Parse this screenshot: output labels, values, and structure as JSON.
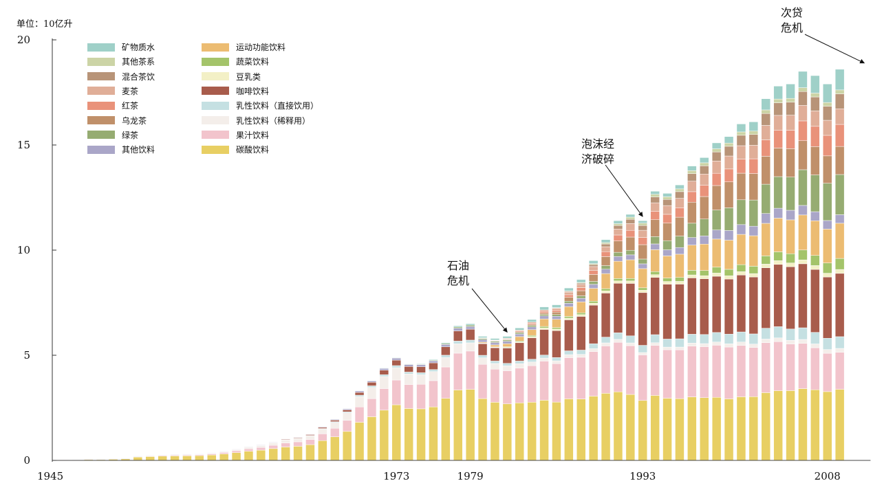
{
  "chart_data": {
    "type": "stacked_bar",
    "title": "",
    "ylabel": "单位：10亿升",
    "xlabel": "",
    "ylim": [
      0,
      20
    ],
    "yticks": [
      0,
      5,
      10,
      15,
      20
    ],
    "xtick_labels": [
      "1945",
      "1973",
      "1979",
      "1993",
      "2008"
    ],
    "x": [
      1946,
      1947,
      1948,
      1949,
      1950,
      1951,
      1952,
      1953,
      1954,
      1955,
      1956,
      1957,
      1958,
      1959,
      1960,
      1961,
      1962,
      1963,
      1964,
      1965,
      1966,
      1967,
      1968,
      1969,
      1970,
      1971,
      1972,
      1973,
      1974,
      1975,
      1976,
      1977,
      1978,
      1979,
      1980,
      1981,
      1982,
      1983,
      1984,
      1985,
      1986,
      1987,
      1988,
      1989,
      1990,
      1991,
      1992,
      1993,
      1994,
      1995,
      1996,
      1997,
      1998,
      1999,
      2000,
      2001,
      2002,
      2003,
      2004,
      2005,
      2006,
      2007,
      2008,
      2009,
      2010,
      2011
    ],
    "series": [
      {
        "name": "碳酸饮料",
        "color": "#e8cf63"
      },
      {
        "name": "果汁饮料",
        "color": "#f2c4cc"
      },
      {
        "name": "乳性饮料（稀释用）",
        "color": "#f4eeea"
      },
      {
        "name": "乳性饮料（直接饮用）",
        "color": "#c5e0e2"
      },
      {
        "name": "咖啡饮料",
        "color": "#a85c4c"
      },
      {
        "name": "豆乳类",
        "color": "#f3f0c6"
      },
      {
        "name": "蔬菜饮料",
        "color": "#a4c46a"
      },
      {
        "name": "运动功能饮料",
        "color": "#ecbc72"
      },
      {
        "name": "其他饮料",
        "color": "#aaa6c8"
      },
      {
        "name": "绿茶",
        "color": "#96ac72"
      },
      {
        "name": "乌龙茶",
        "color": "#c0906a"
      },
      {
        "name": "红茶",
        "color": "#e9927a"
      },
      {
        "name": "麦茶",
        "color": "#e0ae98"
      },
      {
        "name": "混合茶饮",
        "color": "#b89478"
      },
      {
        "name": "其他茶系",
        "color": "#ccd4a6"
      },
      {
        "name": "矿物质水",
        "color": "#9fd0c8"
      }
    ],
    "totals": [
      0.02,
      0.03,
      0.06,
      0.06,
      0.08,
      0.1,
      0.2,
      0.24,
      0.27,
      0.29,
      0.3,
      0.32,
      0.37,
      0.45,
      0.55,
      0.66,
      0.75,
      0.88,
      1.02,
      1.1,
      1.25,
      1.6,
      1.95,
      2.45,
      3.3,
      3.8,
      4.4,
      4.9,
      4.6,
      4.6,
      4.8,
      5.6,
      6.4,
      6.5,
      5.9,
      5.8,
      5.9,
      6.3,
      6.7,
      7.3,
      7.4,
      8.2,
      8.6,
      9.5,
      10.5,
      11.4,
      11.7,
      11.4,
      12.8,
      12.7,
      13.1,
      14.0,
      14.4,
      15.1,
      15.4,
      16.0,
      16.1,
      17.2,
      17.8,
      17.9,
      18.5,
      18.3,
      17.9,
      18.6,
      null,
      null
    ],
    "annotations": [
      {
        "lines": [
          "石油",
          "危机"
        ],
        "target_year": 1982
      },
      {
        "lines": [
          "泡沫经",
          "济破碎"
        ],
        "target_year": 1993
      },
      {
        "lines": [
          "次贷",
          "危机"
        ],
        "target_year": 2011
      }
    ],
    "legend_position": "top-left",
    "grid": false
  }
}
